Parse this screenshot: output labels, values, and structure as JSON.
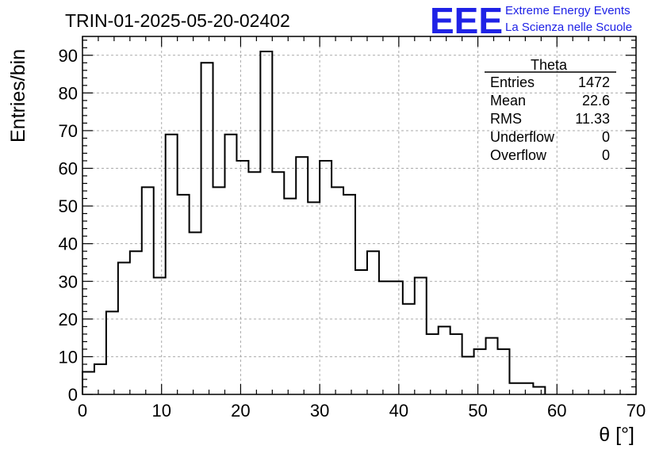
{
  "title": "TRIN-01-2025-05-20-02402",
  "logo": {
    "mark": "EEE",
    "line1": "Extreme Energy Events",
    "line2": "La Scienza nelle Scuole",
    "color": "#1f22e6"
  },
  "stats": {
    "name": "Theta",
    "rows": [
      {
        "label": "Entries",
        "value": "1472"
      },
      {
        "label": "Mean",
        "value": "22.6"
      },
      {
        "label": "RMS",
        "value": "11.33"
      },
      {
        "label": "Underflow",
        "value": "0"
      },
      {
        "label": "Overflow",
        "value": "0"
      }
    ]
  },
  "chart_data": {
    "type": "bar",
    "histogram": true,
    "title": "TRIN-01-2025-05-20-02402",
    "xlabel": "θ [°]",
    "ylabel": "Entries/bin",
    "xlim": [
      0,
      70
    ],
    "ylim": [
      0,
      95
    ],
    "bin_width": 1.5,
    "bin_start": 0,
    "values": [
      6,
      8,
      22,
      35,
      38,
      55,
      31,
      69,
      53,
      43,
      88,
      55,
      69,
      62,
      59,
      91,
      59,
      52,
      63,
      51,
      62,
      55,
      53,
      33,
      38,
      30,
      30,
      24,
      31,
      16,
      18,
      16,
      10,
      12,
      15,
      12,
      3,
      3,
      2
    ],
    "xticks": [
      0,
      10,
      20,
      30,
      40,
      50,
      60,
      70
    ],
    "yticks": [
      0,
      10,
      20,
      30,
      40,
      50,
      60,
      70,
      80,
      90
    ],
    "grid": true,
    "line_color": "#000000"
  }
}
